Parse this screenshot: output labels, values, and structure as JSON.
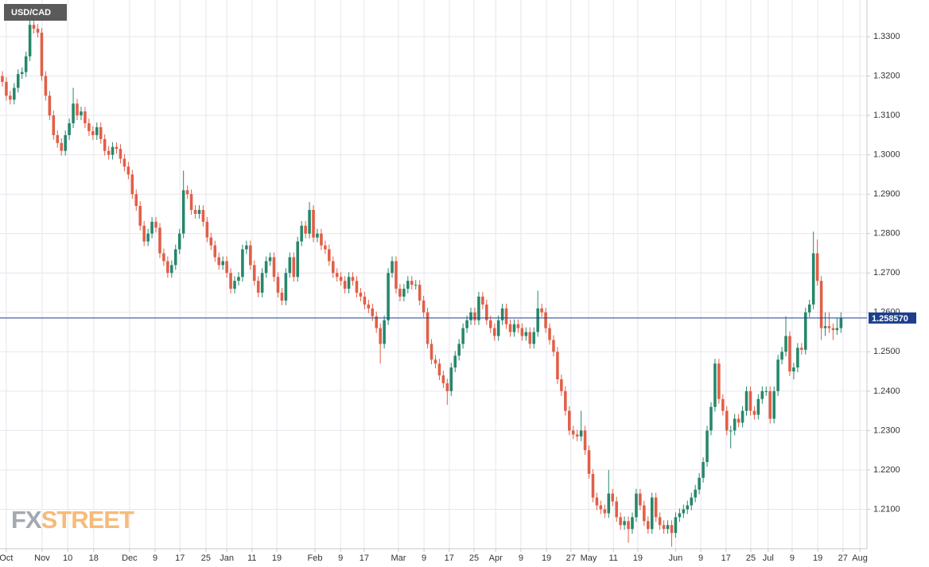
{
  "chart_data": {
    "type": "candlestick",
    "title": "USD/CAD",
    "watermark": [
      "FX",
      "STREET"
    ],
    "up_color": "#26876b",
    "down_color": "#e15f48",
    "grid": true,
    "last_price": {
      "value": 1.25857,
      "label": "1.258570"
    },
    "last_price_color": "#1c3f8c",
    "xlim": [
      -0.6,
      219.6
    ],
    "xticks": [
      {
        "value": 1.0,
        "label": "Oct"
      },
      {
        "value": 10.1,
        "label": "Nov"
      },
      {
        "value": 16.6,
        "label": "10"
      },
      {
        "value": 23.2,
        "label": "18"
      },
      {
        "value": 32.3,
        "label": "Dec"
      },
      {
        "value": 38.8,
        "label": "9"
      },
      {
        "value": 45.1,
        "label": "17"
      },
      {
        "value": 51.7,
        "label": "25"
      },
      {
        "value": 57.0,
        "label": "Jan"
      },
      {
        "value": 63.4,
        "label": "11"
      },
      {
        "value": 69.7,
        "label": "19"
      },
      {
        "value": 79.4,
        "label": "Feb"
      },
      {
        "value": 85.9,
        "label": "9"
      },
      {
        "value": 91.9,
        "label": "17"
      },
      {
        "value": 100.6,
        "label": "Mar"
      },
      {
        "value": 107.1,
        "label": "9"
      },
      {
        "value": 113.5,
        "label": "17"
      },
      {
        "value": 119.8,
        "label": "25"
      },
      {
        "value": 125.3,
        "label": "Apr"
      },
      {
        "value": 131.7,
        "label": "9"
      },
      {
        "value": 138.2,
        "label": "19"
      },
      {
        "value": 144.4,
        "label": "27"
      },
      {
        "value": 148.9,
        "label": "May"
      },
      {
        "value": 155.2,
        "label": "11"
      },
      {
        "value": 161.4,
        "label": "19"
      },
      {
        "value": 171.0,
        "label": "Jun"
      },
      {
        "value": 177.4,
        "label": "9"
      },
      {
        "value": 183.8,
        "label": "17"
      },
      {
        "value": 190.1,
        "label": "25"
      },
      {
        "value": 194.5,
        "label": "Jul"
      },
      {
        "value": 200.6,
        "label": "9"
      },
      {
        "value": 207.1,
        "label": "19"
      },
      {
        "value": 213.5,
        "label": "27"
      },
      {
        "value": 217.8,
        "label": "Aug"
      }
    ],
    "ylim": [
      1.2,
      1.3393
    ],
    "yticks": [
      {
        "value": 1.21,
        "label": "1.2100"
      },
      {
        "value": 1.22,
        "label": "1.2200"
      },
      {
        "value": 1.23,
        "label": "1.2300"
      },
      {
        "value": 1.24,
        "label": "1.2400"
      },
      {
        "value": 1.25,
        "label": "1.2500"
      },
      {
        "value": 1.26,
        "label": "1.2600"
      },
      {
        "value": 1.27,
        "label": "1.2700"
      },
      {
        "value": 1.28,
        "label": "1.2800"
      },
      {
        "value": 1.29,
        "label": "1.2900"
      },
      {
        "value": 1.3,
        "label": "1.3000"
      },
      {
        "value": 1.31,
        "label": "1.3100"
      },
      {
        "value": 1.32,
        "label": "1.3200"
      },
      {
        "value": 1.33,
        "label": "1.3300"
      }
    ],
    "open": [
      1.32,
      1.3185,
      1.315,
      1.314,
      1.317,
      1.3205,
      1.321,
      1.325,
      1.333,
      1.332,
      1.331,
      1.32,
      1.315,
      1.31,
      1.305,
      1.303,
      1.301,
      1.305,
      1.308,
      1.313,
      1.31,
      1.311,
      1.308,
      1.306,
      1.305,
      1.307,
      1.304,
      1.301,
      1.3,
      1.302,
      1.3015,
      1.299,
      1.297,
      1.295,
      1.29,
      1.287,
      1.282,
      1.278,
      1.28,
      1.283,
      1.2815,
      1.275,
      1.273,
      1.27,
      1.272,
      1.276,
      1.28,
      1.291,
      1.29,
      1.286,
      1.285,
      1.286,
      1.283,
      1.279,
      1.277,
      1.274,
      1.272,
      1.273,
      1.27,
      1.266,
      1.268,
      1.269,
      1.276,
      1.277,
      1.272,
      1.268,
      1.265,
      1.27,
      1.273,
      1.274,
      1.269,
      1.265,
      1.263,
      1.27,
      1.274,
      1.269,
      1.278,
      1.282,
      1.28,
      1.286,
      1.279,
      1.28,
      1.277,
      1.276,
      1.273,
      1.27,
      1.269,
      1.268,
      1.266,
      1.269,
      1.268,
      1.265,
      1.264,
      1.262,
      1.261,
      1.259,
      1.256,
      1.252,
      1.258,
      1.27,
      1.273,
      1.266,
      1.264,
      1.266,
      1.268,
      1.267,
      1.267,
      1.263,
      1.26,
      1.252,
      1.248,
      1.247,
      1.244,
      1.242,
      1.24,
      1.246,
      1.249,
      1.252,
      1.256,
      1.258,
      1.26,
      1.258,
      1.264,
      1.262,
      1.258,
      1.256,
      1.254,
      1.258,
      1.261,
      1.257,
      1.255,
      1.257,
      1.256,
      1.254,
      1.255,
      1.252,
      1.255,
      1.261,
      1.26,
      1.256,
      1.253,
      1.25,
      1.243,
      1.24,
      1.235,
      1.23,
      1.229,
      1.2285,
      1.23,
      1.225,
      1.219,
      1.213,
      1.211,
      1.21,
      1.209,
      1.214,
      1.212,
      1.208,
      1.206,
      1.207,
      1.205,
      1.208,
      1.214,
      1.211,
      1.207,
      1.205,
      1.213,
      1.208,
      1.206,
      1.205,
      1.206,
      1.204,
      1.208,
      1.209,
      1.21,
      1.211,
      1.213,
      1.215,
      1.218,
      1.222,
      1.23,
      1.236,
      1.247,
      1.238,
      1.235,
      1.23,
      1.23,
      1.233,
      1.232,
      1.235,
      1.24,
      1.235,
      1.234,
      1.238,
      1.24,
      1.24,
      1.233,
      1.24,
      1.248,
      1.25,
      1.254,
      1.245,
      1.246,
      1.251,
      1.2505,
      1.26,
      1.262,
      1.275,
      1.268,
      1.256,
      1.2565,
      1.256,
      1.2555,
      1.256
    ],
    "high": [
      1.3212,
      1.3197,
      1.3162,
      1.3182,
      1.3217,
      1.3222,
      1.3262,
      1.338,
      1.3342,
      1.3332,
      1.3322,
      1.3212,
      1.3162,
      1.3112,
      1.3062,
      1.3042,
      1.3062,
      1.3092,
      1.317,
      1.3142,
      1.3122,
      1.3122,
      1.3092,
      1.3072,
      1.3082,
      1.3082,
      1.3052,
      1.3022,
      1.3032,
      1.3032,
      1.3027,
      1.3002,
      1.2982,
      1.2962,
      1.2912,
      1.2882,
      1.2832,
      1.2812,
      1.2842,
      1.2842,
      1.2827,
      1.2762,
      1.2742,
      1.2732,
      1.2772,
      1.2812,
      1.296,
      1.2922,
      1.2912,
      1.2872,
      1.2872,
      1.2872,
      1.2842,
      1.2802,
      1.2782,
      1.2752,
      1.2742,
      1.2742,
      1.2712,
      1.2692,
      1.2702,
      1.2772,
      1.2782,
      1.2782,
      1.2732,
      1.2692,
      1.2712,
      1.2742,
      1.2752,
      1.2752,
      1.2702,
      1.2662,
      1.2712,
      1.2752,
      1.2752,
      1.2792,
      1.2832,
      1.2832,
      1.288,
      1.2872,
      1.2812,
      1.2812,
      1.2782,
      1.2772,
      1.2742,
      1.2712,
      1.2702,
      1.2692,
      1.2702,
      1.2702,
      1.2692,
      1.2662,
      1.2652,
      1.2632,
      1.2622,
      1.2602,
      1.2572,
      1.2592,
      1.2712,
      1.2742,
      1.2742,
      1.2672,
      1.2672,
      1.2692,
      1.2692,
      1.2682,
      1.2682,
      1.2642,
      1.2612,
      1.2532,
      1.2492,
      1.2482,
      1.2452,
      1.2432,
      1.2472,
      1.2502,
      1.2532,
      1.2572,
      1.2592,
      1.2612,
      1.2612,
      1.2652,
      1.2652,
      1.2632,
      1.2592,
      1.2572,
      1.2592,
      1.2622,
      1.2622,
      1.2582,
      1.2582,
      1.2582,
      1.2572,
      1.2562,
      1.2562,
      1.2562,
      1.2655,
      1.2622,
      1.2612,
      1.2572,
      1.2542,
      1.2512,
      1.2442,
      1.2412,
      1.2362,
      1.2312,
      1.2302,
      1.235,
      1.2312,
      1.2262,
      1.2202,
      1.2142,
      1.2122,
      1.2112,
      1.22,
      1.2152,
      1.2132,
      1.2092,
      1.2082,
      1.2082,
      1.2092,
      1.2152,
      1.2152,
      1.2122,
      1.2082,
      1.2142,
      1.2142,
      1.2092,
      1.2072,
      1.2072,
      1.2072,
      1.2092,
      1.2102,
      1.2112,
      1.2122,
      1.2142,
      1.2162,
      1.2192,
      1.2232,
      1.2312,
      1.2372,
      1.2482,
      1.2482,
      1.2392,
      1.2362,
      1.2312,
      1.2342,
      1.2342,
      1.2362,
      1.2412,
      1.2412,
      1.2362,
      1.2392,
      1.2412,
      1.2412,
      1.2412,
      1.2412,
      1.2492,
      1.2512,
      1.259,
      1.2552,
      1.2472,
      1.2522,
      1.2522,
      1.2612,
      1.2632,
      1.2805,
      1.2785,
      1.2692,
      1.26,
      1.26,
      1.2572,
      1.2585,
      1.26
    ],
    "low": [
      1.3173,
      1.3138,
      1.3128,
      1.3128,
      1.3158,
      1.3193,
      1.3198,
      1.3238,
      1.3308,
      1.3298,
      1.3188,
      1.3138,
      1.3088,
      1.3038,
      1.3018,
      1.2998,
      1.2998,
      1.3038,
      1.3068,
      1.3088,
      1.3088,
      1.3068,
      1.3048,
      1.3038,
      1.3038,
      1.3028,
      1.2998,
      1.2988,
      1.2988,
      1.3003,
      1.2978,
      1.2958,
      1.2938,
      1.2888,
      1.2858,
      1.2808,
      1.2768,
      1.2768,
      1.2788,
      1.2803,
      1.2738,
      1.2718,
      1.2688,
      1.2688,
      1.2708,
      1.2748,
      1.2788,
      1.2888,
      1.2848,
      1.2838,
      1.2838,
      1.2818,
      1.2778,
      1.2758,
      1.2728,
      1.2708,
      1.2708,
      1.2688,
      1.2648,
      1.2648,
      1.2668,
      1.2678,
      1.2748,
      1.2708,
      1.2668,
      1.2638,
      1.2638,
      1.2688,
      1.2718,
      1.2678,
      1.2638,
      1.2618,
      1.2618,
      1.2688,
      1.2678,
      1.2678,
      1.2768,
      1.2788,
      1.2788,
      1.2778,
      1.2778,
      1.2758,
      1.2748,
      1.2718,
      1.2688,
      1.2678,
      1.2668,
      1.2648,
      1.2648,
      1.2668,
      1.2638,
      1.2628,
      1.2608,
      1.2598,
      1.2578,
      1.2548,
      1.247,
      1.2508,
      1.2568,
      1.2688,
      1.2648,
      1.2628,
      1.2628,
      1.2648,
      1.2658,
      1.2658,
      1.2618,
      1.2588,
      1.2508,
      1.2468,
      1.2458,
      1.2428,
      1.2408,
      1.2365,
      1.2388,
      1.2448,
      1.2478,
      1.2508,
      1.2548,
      1.2568,
      1.2568,
      1.2568,
      1.2608,
      1.2568,
      1.2548,
      1.2528,
      1.2528,
      1.2568,
      1.2558,
      1.2538,
      1.2538,
      1.2548,
      1.2528,
      1.2528,
      1.2508,
      1.2508,
      1.2538,
      1.2588,
      1.2548,
      1.2518,
      1.2488,
      1.2418,
      1.2388,
      1.2338,
      1.2288,
      1.2278,
      1.2273,
      1.2273,
      1.2238,
      1.2178,
      1.2118,
      1.2098,
      1.2088,
      1.2078,
      1.2078,
      1.2108,
      1.2068,
      1.2048,
      1.2048,
      1.2015,
      1.2038,
      1.2068,
      1.2098,
      1.2058,
      1.2038,
      1.2038,
      1.2068,
      1.2048,
      1.2038,
      1.2038,
      1.2005,
      1.2028,
      1.2068,
      1.2078,
      1.2088,
      1.2098,
      1.2118,
      1.2138,
      1.2168,
      1.2208,
      1.2288,
      1.2348,
      1.2368,
      1.2338,
      1.2288,
      1.2255,
      1.2288,
      1.2308,
      1.2308,
      1.2338,
      1.2338,
      1.2328,
      1.2328,
      1.2368,
      1.2388,
      1.2318,
      1.2318,
      1.2388,
      1.2468,
      1.2488,
      1.2438,
      1.243,
      1.2448,
      1.2493,
      1.2493,
      1.2588,
      1.2608,
      1.2668,
      1.253,
      1.254,
      1.2548,
      1.253,
      1.2543,
      1.2548
    ],
    "close": [
      1.3185,
      1.315,
      1.314,
      1.317,
      1.3205,
      1.321,
      1.325,
      1.333,
      1.332,
      1.331,
      1.32,
      1.315,
      1.31,
      1.305,
      1.303,
      1.301,
      1.305,
      1.308,
      1.313,
      1.31,
      1.311,
      1.308,
      1.306,
      1.305,
      1.307,
      1.304,
      1.301,
      1.3,
      1.302,
      1.3015,
      1.299,
      1.297,
      1.295,
      1.29,
      1.287,
      1.282,
      1.278,
      1.28,
      1.283,
      1.2815,
      1.275,
      1.273,
      1.27,
      1.272,
      1.276,
      1.28,
      1.291,
      1.29,
      1.286,
      1.285,
      1.286,
      1.283,
      1.279,
      1.277,
      1.274,
      1.272,
      1.273,
      1.27,
      1.266,
      1.268,
      1.269,
      1.276,
      1.277,
      1.272,
      1.268,
      1.265,
      1.27,
      1.273,
      1.274,
      1.269,
      1.265,
      1.263,
      1.27,
      1.274,
      1.269,
      1.278,
      1.282,
      1.28,
      1.286,
      1.279,
      1.28,
      1.277,
      1.276,
      1.273,
      1.27,
      1.269,
      1.268,
      1.266,
      1.269,
      1.268,
      1.265,
      1.264,
      1.262,
      1.261,
      1.259,
      1.256,
      1.252,
      1.258,
      1.27,
      1.273,
      1.266,
      1.264,
      1.266,
      1.268,
      1.267,
      1.267,
      1.263,
      1.26,
      1.252,
      1.248,
      1.247,
      1.244,
      1.242,
      1.24,
      1.246,
      1.249,
      1.252,
      1.256,
      1.258,
      1.26,
      1.258,
      1.264,
      1.262,
      1.258,
      1.256,
      1.254,
      1.258,
      1.261,
      1.257,
      1.255,
      1.257,
      1.256,
      1.254,
      1.255,
      1.252,
      1.255,
      1.261,
      1.26,
      1.256,
      1.253,
      1.25,
      1.243,
      1.24,
      1.235,
      1.23,
      1.229,
      1.2285,
      1.23,
      1.225,
      1.219,
      1.213,
      1.211,
      1.21,
      1.209,
      1.214,
      1.212,
      1.208,
      1.206,
      1.207,
      1.205,
      1.208,
      1.214,
      1.211,
      1.207,
      1.205,
      1.213,
      1.208,
      1.206,
      1.205,
      1.206,
      1.204,
      1.208,
      1.209,
      1.21,
      1.211,
      1.213,
      1.215,
      1.218,
      1.222,
      1.23,
      1.236,
      1.247,
      1.238,
      1.235,
      1.23,
      1.23,
      1.233,
      1.232,
      1.235,
      1.24,
      1.235,
      1.234,
      1.238,
      1.24,
      1.24,
      1.233,
      1.24,
      1.248,
      1.25,
      1.254,
      1.245,
      1.246,
      1.251,
      1.2505,
      1.26,
      1.262,
      1.275,
      1.268,
      1.256,
      1.2565,
      1.256,
      1.2555,
      1.256,
      1.2586
    ]
  }
}
